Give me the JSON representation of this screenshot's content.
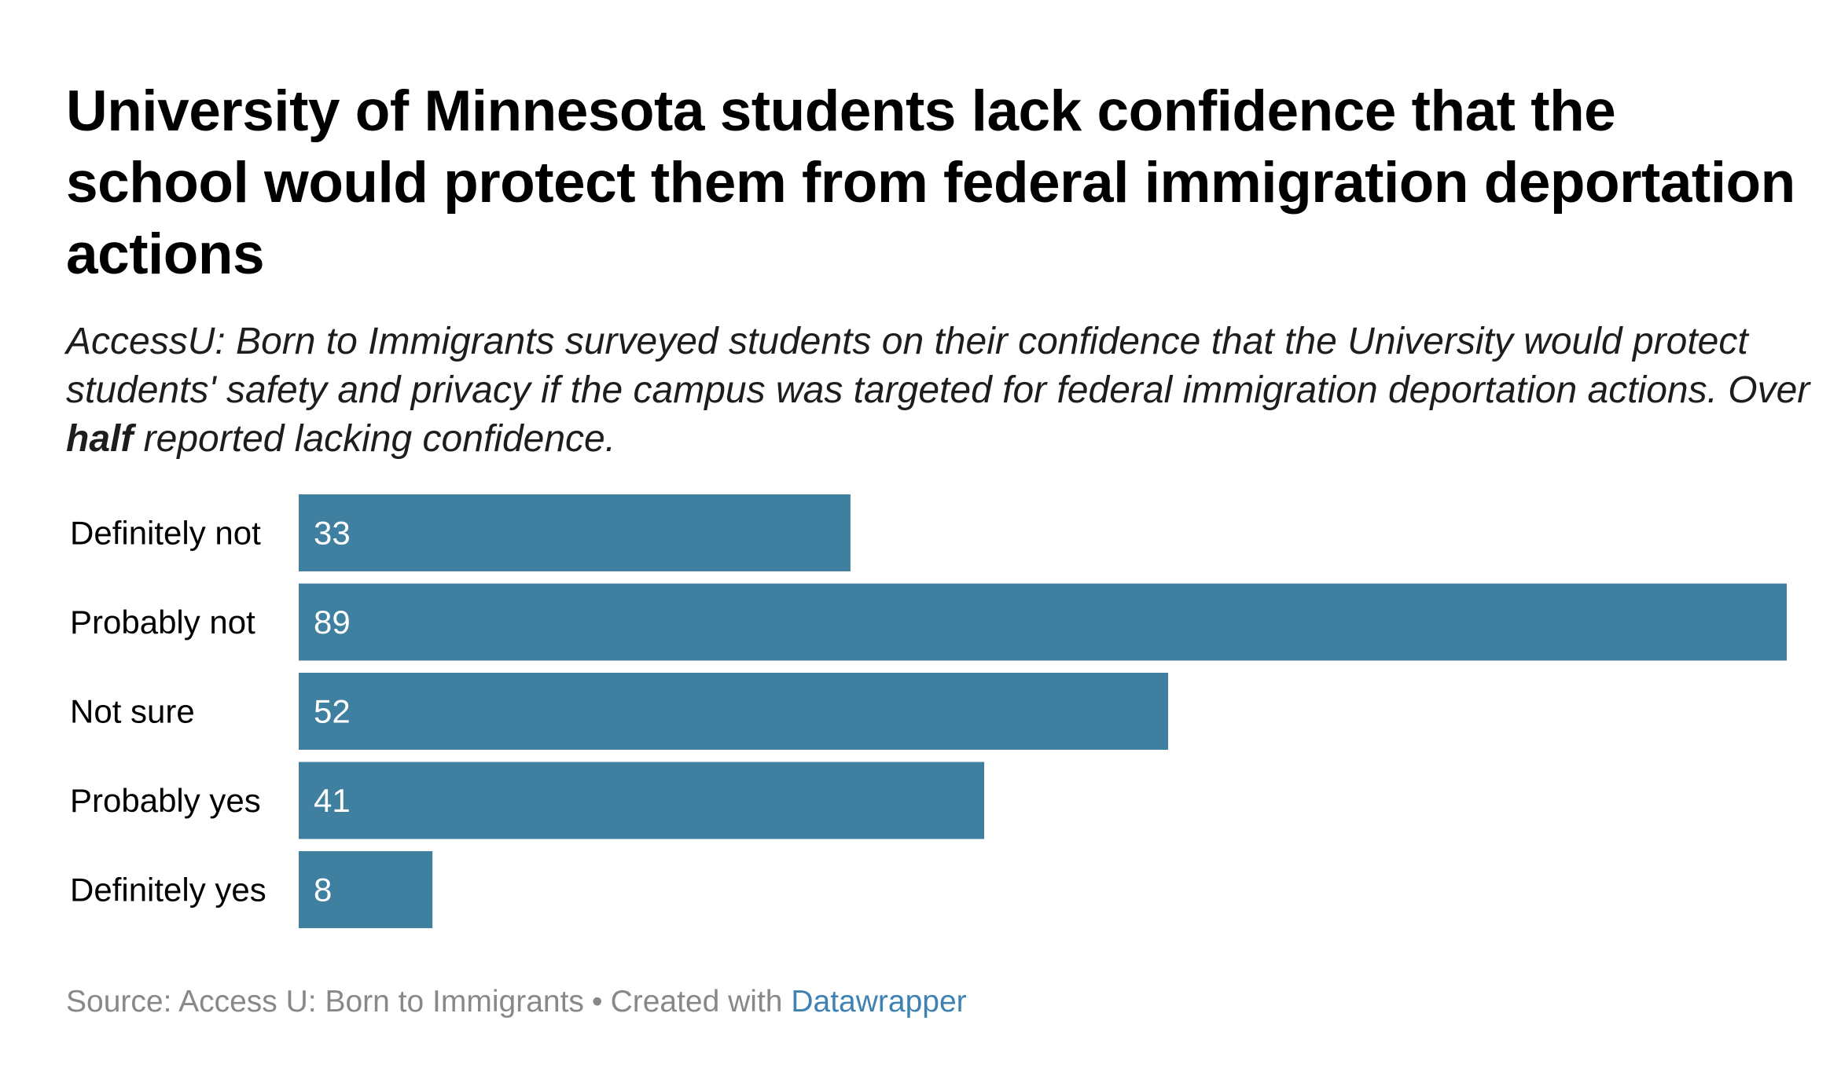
{
  "title": "University of Minnesota students lack confidence that the school would protect them from federal immigration deportation actions",
  "subtitle": {
    "before": "AccessU: Born to Immigrants surveyed students on their confidence that the University would protect students' safety and privacy if the campus was targeted for federal immigration deportation actions. Over ",
    "bold": "half",
    "after": " reported lacking confidence."
  },
  "colors": {
    "bar": "#3f7fa0",
    "label": "#000000",
    "value_text": "#ffffff",
    "footer": "#888888",
    "link": "#3e82b4"
  },
  "chart_data": {
    "type": "bar",
    "orientation": "horizontal",
    "categories": [
      "Definitely not",
      "Probably not",
      "Not sure",
      "Probably yes",
      "Definitely yes"
    ],
    "values": [
      33,
      89,
      52,
      41,
      8
    ],
    "xlim": [
      0,
      89
    ],
    "grid": false,
    "legend": "none"
  },
  "footer": {
    "source": "Source: Access U: Born to Immigrants",
    "separator": "•",
    "created": "Created with",
    "tool": "Datawrapper"
  }
}
